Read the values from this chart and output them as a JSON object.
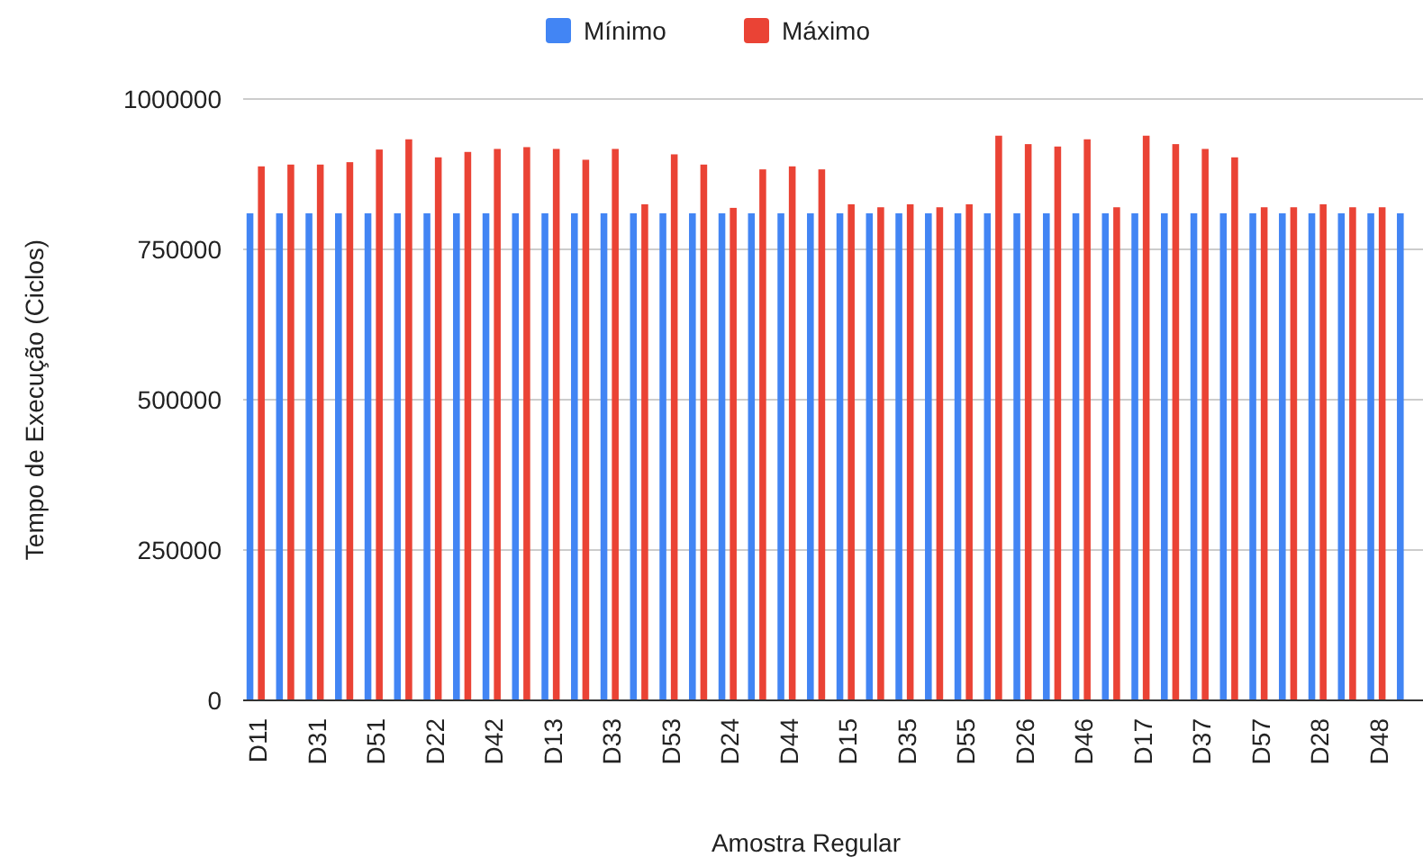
{
  "chart_data": {
    "type": "bar",
    "xlabel": "Amostra Regular",
    "ylabel": "Tempo de Execução (Ciclos)",
    "categories": [
      "D11",
      null,
      "D31",
      null,
      "D51",
      null,
      "D22",
      null,
      "D42",
      null,
      "D13",
      null,
      "D33",
      null,
      "D53",
      null,
      "D24",
      null,
      "D44",
      null,
      "D15",
      null,
      "D35",
      null,
      "D55",
      null,
      "D26",
      null,
      "D46",
      null,
      "D17",
      null,
      "D37",
      null,
      "D57",
      null,
      "D28",
      null,
      "D48",
      null
    ],
    "series": [
      {
        "name": "Mínimo",
        "color": "#4285f4",
        "values": [
          810000,
          810000,
          810000,
          810000,
          810000,
          810000,
          810000,
          810000,
          810000,
          810000,
          810000,
          810000,
          810000,
          810000,
          810000,
          810000,
          810000,
          810000,
          810000,
          810000,
          810000,
          810000,
          810000,
          810000,
          810000,
          810000,
          810000,
          810000,
          810000,
          810000,
          810000,
          810000,
          810000,
          810000,
          810000,
          810000,
          810000,
          810000,
          810000,
          810000
        ]
      },
      {
        "name": "Máximo",
        "color": "#ea4335",
        "values": [
          888000,
          891000,
          891000,
          895000,
          916000,
          933000,
          903000,
          912000,
          917000,
          920000,
          917000,
          899000,
          917000,
          825000,
          908000,
          891000,
          819000,
          883000,
          888000,
          883000,
          825000,
          820000,
          825000,
          820000,
          825000,
          939000,
          925000,
          921000,
          933000,
          820000,
          939000,
          925000,
          917000,
          903000,
          820000,
          820000,
          825000,
          820000,
          820000,
          null
        ]
      }
    ],
    "ylim": [
      0,
      1000000
    ],
    "yticks": [
      0,
      250000,
      500000,
      750000,
      1000000
    ],
    "grid": "y",
    "legend": "top"
  }
}
